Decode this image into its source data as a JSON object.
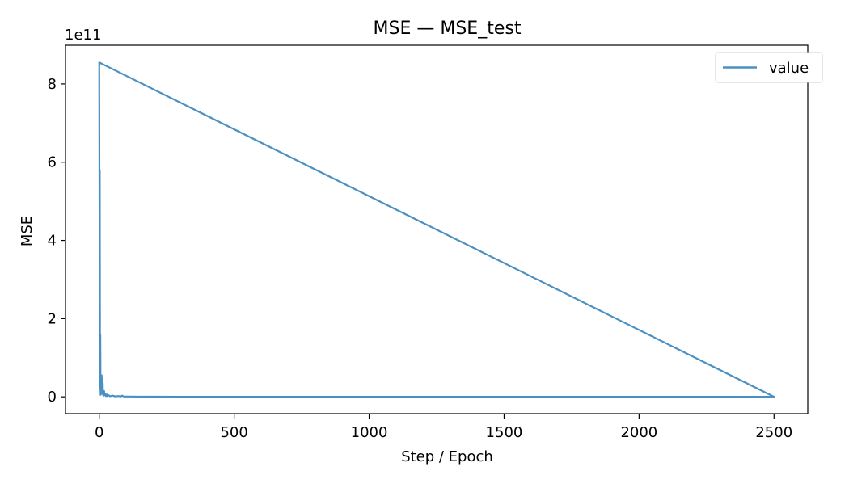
{
  "chart_data": {
    "type": "line",
    "title": "MSE — MSE_test",
    "xlabel": "Step / Epoch",
    "ylabel": "MSE",
    "y_multiplier_label": "1e11",
    "y_multiplier": 100000000000,
    "xlim": [
      -125,
      2625
    ],
    "ylim": [
      -43000000000,
      899000000000
    ],
    "x_ticks": [
      0,
      500,
      1000,
      1500,
      2000,
      2500
    ],
    "x_tick_labels": [
      "0",
      "500",
      "1000",
      "1500",
      "2000",
      "2500"
    ],
    "y_ticks": [
      0,
      200000000000,
      400000000000,
      600000000000,
      800000000000
    ],
    "y_tick_labels": [
      "0",
      "2",
      "4",
      "6",
      "8"
    ],
    "grid": false,
    "legend_position": "top-right",
    "series": [
      {
        "name": "value",
        "color": "#4a90c2",
        "x": [
          0,
          1,
          2,
          3,
          4,
          5,
          6,
          7,
          8,
          9,
          10,
          11,
          12,
          13,
          14,
          15,
          16,
          18,
          20,
          22,
          25,
          28,
          30,
          35,
          40,
          50,
          60,
          70,
          80,
          85,
          90,
          100,
          150,
          200,
          300,
          500,
          1000,
          1500,
          2000,
          2500,
          0,
          2500
        ],
        "y": [
          855000000000,
          470000000000,
          580000000000,
          20000000000,
          160000000000,
          5000000000,
          30000000000,
          10000000000,
          40000000000,
          55000000000,
          8000000000,
          45000000000,
          20000000000,
          35000000000,
          5000000000,
          12000000000,
          3000000000,
          15000000000,
          4000000000,
          8000000000,
          2000000000,
          6000000000,
          2000000000,
          4000000000,
          1500000000,
          3000000000,
          1000000000,
          2000000000,
          1000000000,
          3000000000,
          1000000000,
          800000000,
          500000000,
          400000000,
          300000000,
          200000000,
          150000000,
          120000000,
          100000000,
          100000000,
          855000000000,
          100000000
        ]
      }
    ]
  }
}
